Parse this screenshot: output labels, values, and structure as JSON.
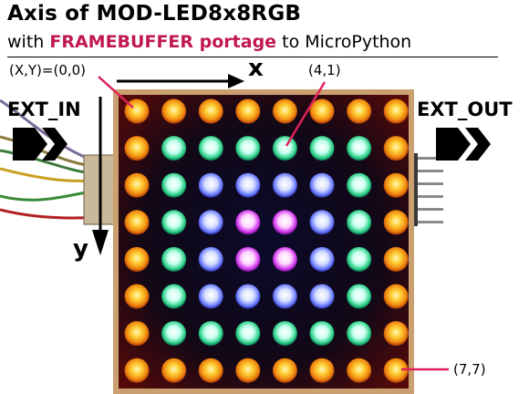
{
  "title": "Axis of MOD-LED8x8RGB",
  "subtitle": {
    "prefix": "with ",
    "highlight": "FRAMEBUFFER portage",
    "suffix": " to MicroPython"
  },
  "labels": {
    "origin": "(X,Y)=(0,0)",
    "pixel_4_1": "(4,1)",
    "pixel_7_7": "(7,7)",
    "x_axis": "x",
    "y_axis": "y",
    "ext_in": "EXT_IN",
    "ext_out": "EXT_OUT"
  },
  "colors": {
    "highlight": "#c0184f",
    "pointer": "#e0205a",
    "border_led": "#f5b21e",
    "green_led": "#2fd28a",
    "blue_led": "#6a7cff",
    "magenta_led": "#d43cf0"
  },
  "matrix": {
    "size": 8,
    "ring_colors": [
      "yellow",
      "green",
      "blue",
      "magenta"
    ]
  }
}
